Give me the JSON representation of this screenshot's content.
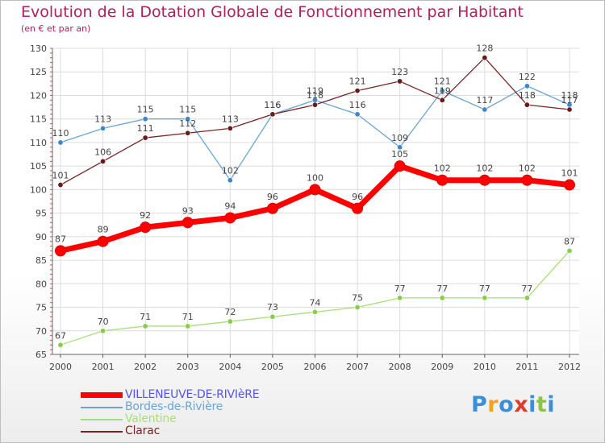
{
  "header": {
    "title": "Evolution de la Dotation Globale de Fonctionnement par Habitant",
    "subtitle": "(en € et par an)"
  },
  "logo": {
    "text": "Proxiti",
    "letters": [
      "P",
      "r",
      "o",
      "x",
      "i",
      "t",
      "i"
    ],
    "letter_colors": [
      "#3b8fd8",
      "#f2a31b",
      "#3b8fd8",
      "#e03a2c",
      "#3b8fd8",
      "#8cc63f",
      "#3b8fd8"
    ]
  },
  "chart_data": {
    "type": "line",
    "title": "Evolution de la Dotation Globale de Fonctionnement par Habitant",
    "subtitle": "(en € et par an)",
    "x": [
      "2000",
      "2001",
      "2002",
      "2003",
      "2004",
      "2005",
      "2006",
      "2007",
      "2008",
      "2009",
      "2010",
      "2011",
      "2012"
    ],
    "ylim": [
      65,
      130
    ],
    "yticks": [
      65,
      70,
      75,
      80,
      85,
      90,
      95,
      100,
      105,
      110,
      115,
      120,
      125,
      130
    ],
    "grid": true,
    "legend_position": "bottom-left",
    "series": [
      {
        "name": "VILLENEUVE-DE-RIVIèRE",
        "color": "#ff0000",
        "marker_color": "#cc0000",
        "legend_text_color": "#5555ee",
        "emphasis": true,
        "values": [
          87,
          89,
          92,
          93,
          94,
          96,
          100,
          96,
          105,
          102,
          102,
          102,
          101
        ]
      },
      {
        "name": "Bordes-de-Rivière",
        "color": "#6aa4d8",
        "marker_color": "#3f87c9",
        "legend_text_color": "#6aa4d8",
        "emphasis": false,
        "values": [
          110,
          113,
          115,
          115,
          102,
          116,
          119,
          116,
          109,
          121,
          117,
          122,
          118
        ]
      },
      {
        "name": "Valentine",
        "color": "#a7de78",
        "marker_color": "#88cc52",
        "legend_text_color": "#a7de78",
        "emphasis": false,
        "values": [
          67,
          70,
          71,
          71,
          72,
          73,
          74,
          75,
          77,
          77,
          77,
          77,
          87
        ]
      },
      {
        "name": "Clarac",
        "color": "#7a2323",
        "marker_color": "#6a1a1a",
        "legend_text_color": "#7a2323",
        "emphasis": false,
        "values": [
          101,
          106,
          111,
          112,
          113,
          116,
          118,
          121,
          123,
          119,
          128,
          118,
          117
        ]
      }
    ]
  }
}
